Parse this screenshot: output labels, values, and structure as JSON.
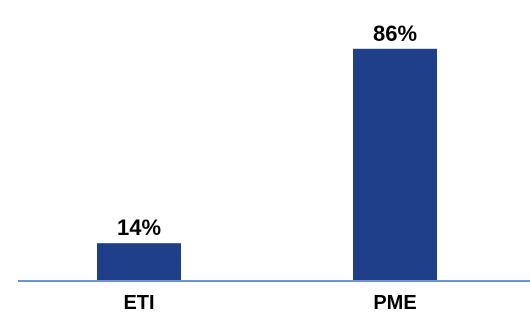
{
  "chart_data": {
    "type": "bar",
    "categories": [
      "ETI",
      "PME"
    ],
    "values": [
      14,
      86
    ],
    "value_labels": [
      "14%",
      "86%"
    ],
    "unit": "%",
    "ylim": [
      0,
      100
    ],
    "grid": false,
    "legend": "none",
    "bar_color": "#1F3F8A",
    "axis_color": "#6F93D3"
  }
}
